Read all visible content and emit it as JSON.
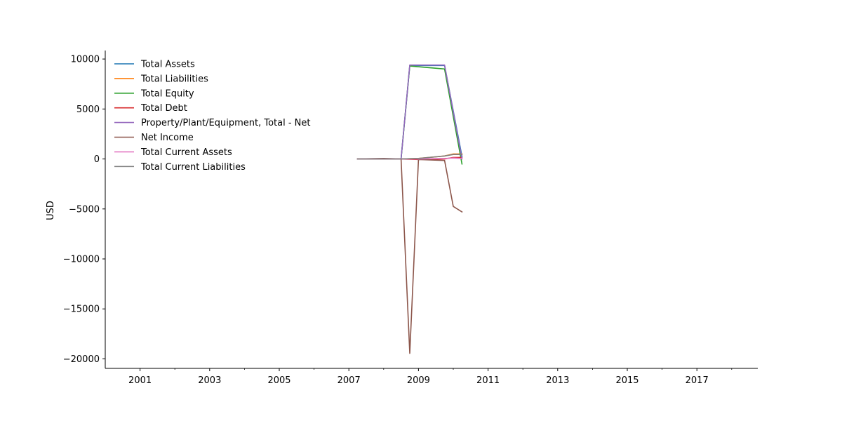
{
  "chart_data": {
    "type": "line",
    "title": "",
    "xlabel": "",
    "ylabel": "USD",
    "xlim": [
      2000.0,
      2018.75
    ],
    "ylim": [
      -20950,
      10850
    ],
    "xticks": [
      2001,
      2003,
      2005,
      2007,
      2009,
      2011,
      2013,
      2015,
      2017
    ],
    "xtick_labels": [
      "2001",
      "2003",
      "2005",
      "2007",
      "2009",
      "2011",
      "2013",
      "2015",
      "2017"
    ],
    "yticks": [
      10000,
      5000,
      0,
      -5000,
      -10000,
      -15000,
      -20000
    ],
    "ytick_labels": [
      "10000",
      "5000",
      "0",
      "−5000",
      "−10000",
      "−15000",
      "−20000"
    ],
    "grid": false,
    "legend_position": "upper-left",
    "series": [
      {
        "name": "Total Assets",
        "color": "#1f77b4",
        "x": [
          2007.25,
          2008.5,
          2008.75,
          2009.75,
          2010.25
        ],
        "y": [
          0,
          0,
          9350,
          9350,
          250
        ]
      },
      {
        "name": "Total Liabilities",
        "color": "#ff7f0e",
        "x": [
          2007.25,
          2008.5,
          2009.0,
          2009.75,
          2010.0,
          2010.25
        ],
        "y": [
          0,
          0,
          50,
          300,
          500,
          500
        ]
      },
      {
        "name": "Total Equity",
        "color": "#2ca02c",
        "x": [
          2008.5,
          2008.75,
          2009.75,
          2010.25
        ],
        "y": [
          0,
          9300,
          9000,
          -500
        ]
      },
      {
        "name": "Total Debt",
        "color": "#d62728",
        "x": [
          2008.5,
          2009.0,
          2009.75,
          2010.0,
          2010.25
        ],
        "y": [
          0,
          -50,
          0,
          150,
          150
        ]
      },
      {
        "name": "Property/Plant/Equipment, Total - Net",
        "color": "#9467bd",
        "x": [
          2008.5,
          2008.75,
          2009.75,
          2010.25
        ],
        "y": [
          0,
          9400,
          9400,
          0
        ]
      },
      {
        "name": "Net Income",
        "color": "#8c564b",
        "x": [
          2007.25,
          2008.0,
          2008.5,
          2008.75,
          2009.0,
          2009.75,
          2010.0,
          2010.25
        ],
        "y": [
          0,
          50,
          0,
          -19450,
          -50,
          -150,
          -4750,
          -5300
        ]
      },
      {
        "name": "Total Current Assets",
        "color": "#e377c2",
        "x": [
          2007.25,
          2008.5,
          2009.0,
          2009.75,
          2010.0,
          2010.25
        ],
        "y": [
          0,
          0,
          0,
          50,
          100,
          50
        ]
      },
      {
        "name": "Total Current Liabilities",
        "color": "#7f7f7f",
        "x": [
          2007.25,
          2008.5,
          2009.0,
          2009.75,
          2010.0,
          2010.25
        ],
        "y": [
          0,
          0,
          50,
          300,
          450,
          450
        ]
      }
    ]
  }
}
